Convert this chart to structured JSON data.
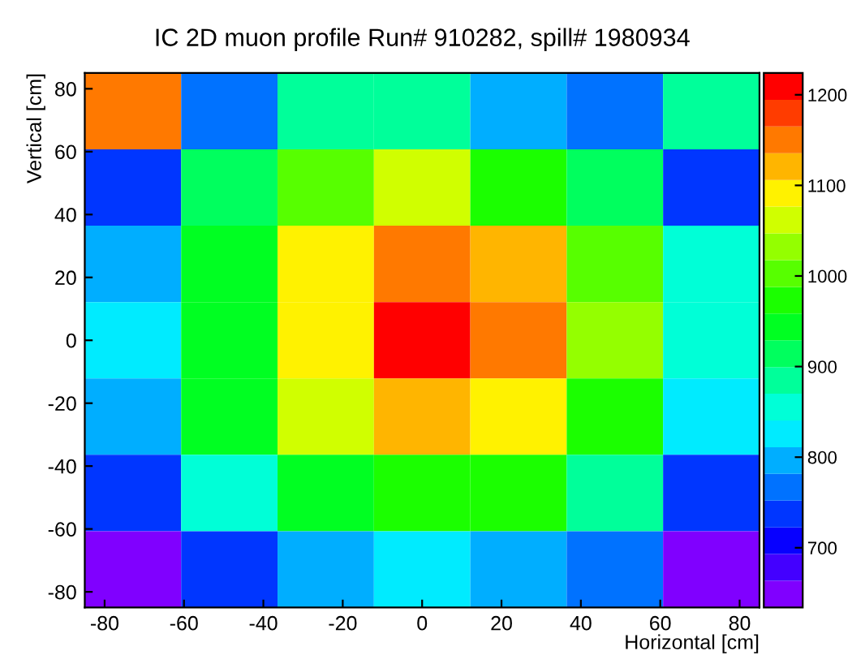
{
  "chart_data": {
    "type": "heatmap",
    "title": "IC 2D muon profile Run# 910282, spill# 1980934",
    "xlabel": "Horizontal [cm]",
    "ylabel": "Vertical [cm]",
    "xlim": [
      -85,
      85
    ],
    "ylim": [
      -85,
      85
    ],
    "xticks": [
      -80,
      -60,
      -40,
      -20,
      0,
      20,
      40,
      60,
      80
    ],
    "yticks": [
      -80,
      -60,
      -40,
      -20,
      0,
      20,
      40,
      60,
      80
    ],
    "clim": [
      634,
      1224
    ],
    "cticks": [
      700,
      800,
      900,
      1000,
      1100,
      1200
    ],
    "grid": false,
    "cells": [
      [
        1150,
        766,
        885,
        885,
        796,
        766,
        885
      ],
      [
        737,
        914,
        1002,
        1062,
        973,
        914,
        737
      ],
      [
        796,
        943,
        1091,
        1150,
        1120,
        1002,
        855
      ],
      [
        825,
        943,
        1091,
        1209,
        1150,
        1032,
        855
      ],
      [
        796,
        943,
        1062,
        1120,
        1091,
        973,
        825
      ],
      [
        737,
        855,
        943,
        973,
        973,
        885,
        737
      ],
      [
        648,
        737,
        796,
        825,
        796,
        766,
        648
      ]
    ]
  }
}
